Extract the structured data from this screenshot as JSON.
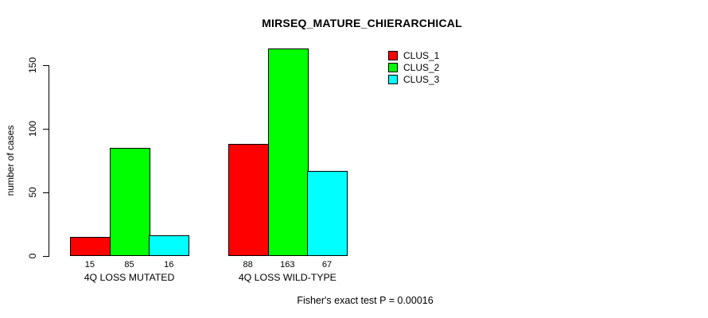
{
  "title": "MIRSEQ_MATURE_CHIERARCHICAL",
  "footer": "Fisher's exact test P = 0.00016",
  "colors": {
    "background": "#ffffff",
    "axis": "#000000",
    "text": "#000000",
    "clus_1": "#ff0000",
    "clus_2": "#00ff00",
    "clus_3": "#00ffff"
  },
  "chart_data": {
    "type": "bar",
    "title": "MIRSEQ_MATURE_CHIERARCHICAL",
    "xlabel": "",
    "ylabel": "number of cases",
    "ylim": [
      0,
      150
    ],
    "yticks": [
      0,
      50,
      100,
      150
    ],
    "grid": false,
    "legend_position": "top-right",
    "categories": [
      "4Q LOSS MUTATED",
      "4Q LOSS WILD-TYPE"
    ],
    "series": [
      {
        "name": "CLUS_1",
        "color": "#ff0000",
        "values": [
          15,
          88
        ]
      },
      {
        "name": "CLUS_2",
        "color": "#00ff00",
        "values": [
          85,
          163
        ]
      },
      {
        "name": "CLUS_3",
        "color": "#00ffff",
        "values": [
          16,
          67
        ]
      }
    ],
    "bar_value_labels": [
      [
        15,
        85,
        16
      ],
      [
        88,
        163,
        67
      ]
    ],
    "annotation": "Fisher's exact test P = 0.00016"
  }
}
